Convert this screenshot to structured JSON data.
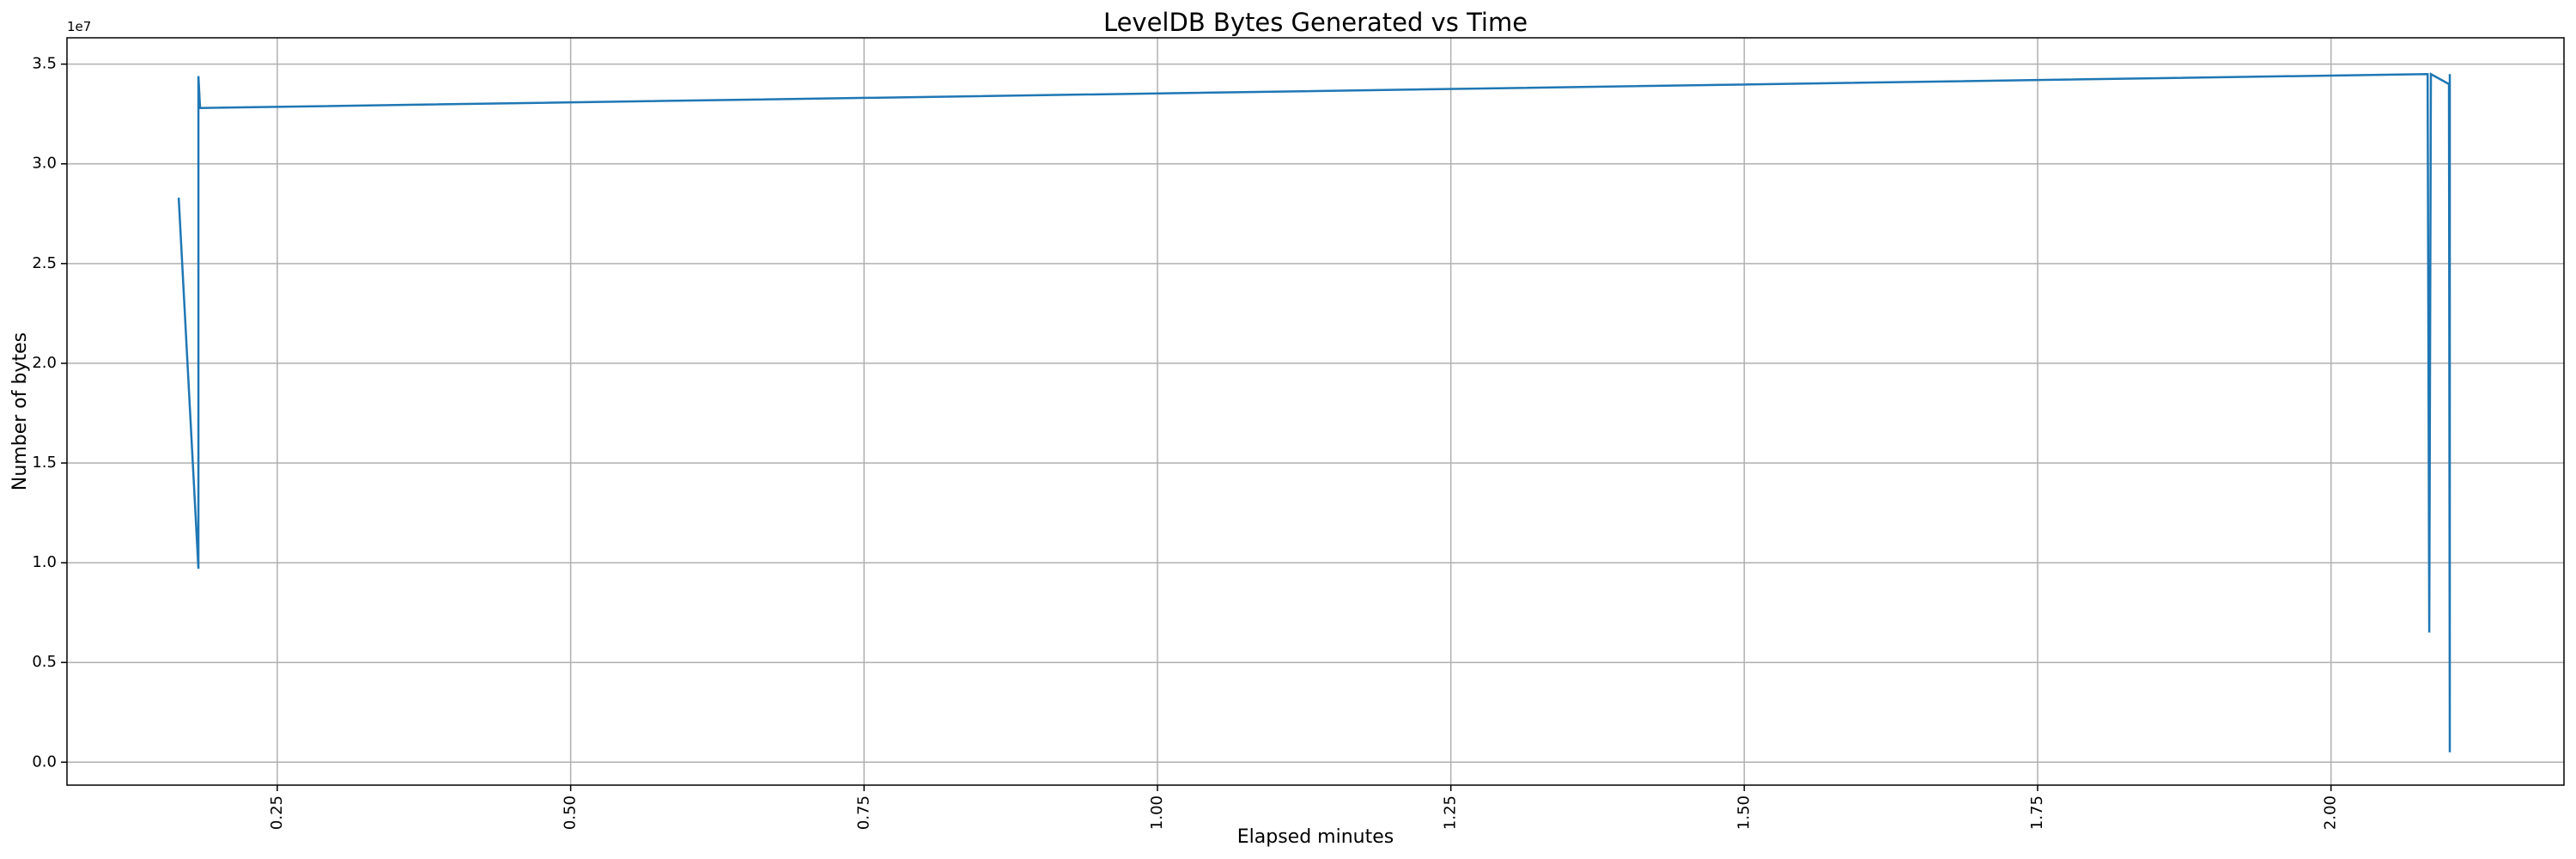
{
  "chart_data": {
    "type": "line",
    "title": "LevelDB Bytes Generated vs Time",
    "x_label": "Elapsed minutes",
    "y_label": "Number of bytes",
    "offset_text": "1e7",
    "x": [
      0.166,
      0.1828,
      0.1828,
      0.1842,
      2.0823,
      2.0837,
      2.0851,
      2.1005,
      2.1012,
      2.1012
    ],
    "series": [
      {
        "name": "bytes",
        "color": "#1f77b4",
        "values": [
          28300000,
          9700000,
          34400000,
          32800000,
          34500000,
          6500000,
          34500000,
          34000000,
          500000,
          34500000
        ]
      }
    ],
    "xlim": [
      0.0708,
      2.1985
    ],
    "ylim": [
      -1150000,
      36320000
    ],
    "xticks": [
      {
        "value": 0.25,
        "label": "0.25"
      },
      {
        "value": 0.5,
        "label": "0.50"
      },
      {
        "value": 0.75,
        "label": "0.75"
      },
      {
        "value": 1,
        "label": "1.00"
      },
      {
        "value": 1.25,
        "label": "1.25"
      },
      {
        "value": 1.5,
        "label": "1.50"
      },
      {
        "value": 1.75,
        "label": "1.75"
      },
      {
        "value": 2,
        "label": "2.00"
      }
    ],
    "yticks": [
      {
        "value": 0,
        "label": "0.0"
      },
      {
        "value": 5000000,
        "label": "0.5"
      },
      {
        "value": 10000000,
        "label": "1.0"
      },
      {
        "value": 15000000,
        "label": "1.5"
      },
      {
        "value": 20000000,
        "label": "2.0"
      },
      {
        "value": 25000000,
        "label": "2.5"
      },
      {
        "value": 30000000,
        "label": "3.0"
      },
      {
        "value": 35000000,
        "label": "3.5"
      }
    ],
    "grid": true
  }
}
